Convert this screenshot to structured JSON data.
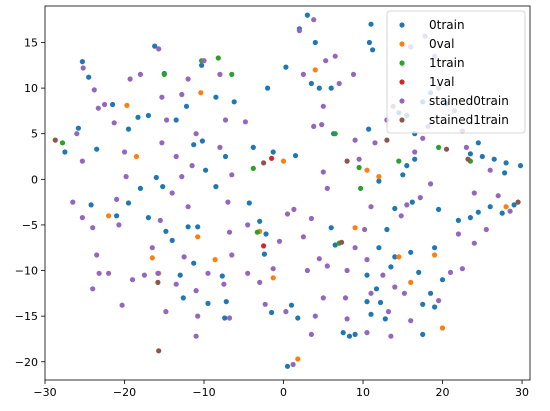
{
  "chart_data": {
    "type": "scatter",
    "title": "",
    "xlabel": "",
    "ylabel": "",
    "xlim": [
      -30,
      31
    ],
    "ylim": [
      -22,
      19
    ],
    "xticks": [
      -30,
      -20,
      -10,
      0,
      10,
      20,
      30
    ],
    "yticks": [
      -20,
      -15,
      -10,
      -5,
      0,
      5,
      10,
      15
    ],
    "grid": false,
    "legend_position": "top-right",
    "series": [
      {
        "name": "0train",
        "color": "#1f77b4",
        "points": [
          [
            -25.3,
            12.9
          ],
          [
            -24.5,
            11.2
          ],
          [
            -23.5,
            3.3
          ],
          [
            -25.8,
            5.6
          ],
          [
            -27.5,
            3.0
          ],
          [
            -24.2,
            -2.8
          ],
          [
            -21.0,
            -4.0
          ],
          [
            -21.5,
            8.2
          ],
          [
            -19.5,
            5.5
          ],
          [
            -18.3,
            6.8
          ],
          [
            -17.0,
            7.0
          ],
          [
            -18.0,
            -1.0
          ],
          [
            -19.5,
            -2.6
          ],
          [
            -17.0,
            -4.2
          ],
          [
            -16.0,
            0.2
          ],
          [
            -15.2,
            -0.8
          ],
          [
            -14.8,
            -5.7
          ],
          [
            -14.0,
            -6.7
          ],
          [
            -16.2,
            14.6
          ],
          [
            -15.0,
            11.6
          ],
          [
            -13.5,
            6.5
          ],
          [
            -12.2,
            8.0
          ],
          [
            -11.3,
            3.8
          ],
          [
            -10.2,
            4.2
          ],
          [
            -9.8,
            1.0
          ],
          [
            -10.3,
            12.5
          ],
          [
            -8.5,
            9.0
          ],
          [
            -6.2,
            8.5
          ],
          [
            -7.3,
            2.5
          ],
          [
            -8.5,
            -0.8
          ],
          [
            -12.0,
            -5.2
          ],
          [
            -10.8,
            -5.2
          ],
          [
            -11.3,
            -9.2
          ],
          [
            -13.0,
            -10.5
          ],
          [
            -12.6,
            -13.0
          ],
          [
            -9.5,
            -13.6
          ],
          [
            -7.7,
            -10.6
          ],
          [
            -7.2,
            -13.4
          ],
          [
            -7.4,
            -15.2
          ],
          [
            -4.3,
            -2.6
          ],
          [
            -3.0,
            -4.6
          ],
          [
            -2.2,
            -6.0
          ],
          [
            -2.4,
            -8.2
          ],
          [
            -1.5,
            -14.6
          ],
          [
            1.0,
            -13.8
          ],
          [
            1.8,
            -15.2
          ],
          [
            0.5,
            -20.5
          ],
          [
            -3.8,
            3.5
          ],
          [
            -1.3,
            3.0
          ],
          [
            1.5,
            2.6
          ],
          [
            0.3,
            12.3
          ],
          [
            -2.0,
            10.0
          ],
          [
            2.0,
            16.5
          ],
          [
            3.0,
            18.0
          ],
          [
            4.0,
            15.0
          ],
          [
            3.5,
            10.5
          ],
          [
            4.5,
            10.0
          ],
          [
            6.0,
            10.0
          ],
          [
            6.3,
            5.0
          ],
          [
            6.0,
            -5.3
          ],
          [
            6.5,
            -7.2
          ],
          [
            7.5,
            -16.8
          ],
          [
            8.3,
            -17.2
          ],
          [
            9.0,
            -17.0
          ],
          [
            10.5,
            -10.5
          ],
          [
            10.5,
            -13.4
          ],
          [
            11.0,
            -14.8
          ],
          [
            11.7,
            -12.0
          ],
          [
            12.2,
            -13.5
          ],
          [
            12.8,
            -15.3
          ],
          [
            12.0,
            -7.5
          ],
          [
            13.5,
            -9.6
          ],
          [
            14.0,
            -8.5
          ],
          [
            12.0,
            -0.2
          ],
          [
            14.0,
            -3.2
          ],
          [
            15.0,
            0.5
          ],
          [
            16.2,
            -2.5
          ],
          [
            16.0,
            -8.0
          ],
          [
            17.0,
            -10.2
          ],
          [
            17.5,
            -13.7
          ],
          [
            18.5,
            -12.5
          ],
          [
            19.0,
            -14.0
          ],
          [
            11.0,
            17.0
          ],
          [
            10.8,
            15.0
          ],
          [
            11.2,
            14.2
          ],
          [
            10.7,
            5.5
          ],
          [
            13.0,
            -5.5
          ],
          [
            15.5,
            1.5
          ],
          [
            16.5,
            2.2
          ],
          [
            19.5,
            -3.3
          ],
          [
            19.0,
            -7.5
          ],
          [
            20.0,
            -11.0
          ],
          [
            22.0,
            -4.5
          ],
          [
            23.5,
            -4.2
          ],
          [
            24.5,
            -3.6
          ],
          [
            26.0,
            -3.0
          ],
          [
            27.5,
            -3.7
          ],
          [
            29.0,
            -2.8
          ],
          [
            29.8,
            1.5
          ],
          [
            24.5,
            4.0
          ],
          [
            25.0,
            2.5
          ],
          [
            26.5,
            2.2
          ],
          [
            28.0,
            1.8
          ],
          [
            27.8,
            0.7
          ],
          [
            23.5,
            2.8
          ],
          [
            20.5,
            8.3
          ],
          [
            18.5,
            9.5
          ],
          [
            17.5,
            8.5
          ],
          [
            16.5,
            5.0
          ],
          [
            15.5,
            7.0
          ],
          [
            14.5,
            7.3
          ],
          [
            17.5,
            -17.0
          ]
        ]
      },
      {
        "name": "0val",
        "color": "#ff7f0e",
        "points": [
          [
            -19.7,
            8.1
          ],
          [
            -18.5,
            2.5
          ],
          [
            -22.0,
            -4.0
          ],
          [
            -16.5,
            -8.6
          ],
          [
            -15.7,
            -10.3
          ],
          [
            -10.8,
            -6.3
          ],
          [
            -10.4,
            9.5
          ],
          [
            -8.6,
            -8.8
          ],
          [
            -3.0,
            -5.7
          ],
          [
            -1.3,
            -10.8
          ],
          [
            0.0,
            2.0
          ],
          [
            1.8,
            -19.7
          ],
          [
            4.0,
            12.0
          ],
          [
            9.0,
            -5.3
          ],
          [
            10.5,
            1.0
          ],
          [
            12.0,
            0.3
          ],
          [
            14.5,
            -8.5
          ],
          [
            16.0,
            -11.3
          ],
          [
            19.0,
            -8.3
          ],
          [
            20.0,
            -16.3
          ],
          [
            28.0,
            -3.0
          ]
        ]
      },
      {
        "name": "1train",
        "color": "#2ca02c",
        "points": [
          [
            -27.8,
            4.0
          ],
          [
            -15.0,
            11.5
          ],
          [
            -10.3,
            13.0
          ],
          [
            -8.2,
            13.3
          ],
          [
            -6.5,
            11.5
          ],
          [
            -3.8,
            1.2
          ],
          [
            -3.3,
            -5.8
          ],
          [
            6.5,
            5.0
          ],
          [
            7.0,
            -7.0
          ],
          [
            9.5,
            1.3
          ],
          [
            9.7,
            -1.0
          ],
          [
            14.5,
            2.0
          ],
          [
            19.5,
            3.5
          ],
          [
            23.5,
            2.0
          ]
        ]
      },
      {
        "name": "1val",
        "color": "#d62728",
        "points": [
          [
            -2.5,
            -7.3
          ],
          [
            -1.5,
            2.3
          ]
        ]
      },
      {
        "name": "stained0train",
        "color": "#9467bd",
        "points": [
          [
            -25.2,
            12.2
          ],
          [
            -23.8,
            9.8
          ],
          [
            -23.3,
            7.8
          ],
          [
            -26.0,
            5.0
          ],
          [
            -25.3,
            2.0
          ],
          [
            -26.5,
            -2.5
          ],
          [
            -25.3,
            -4.2
          ],
          [
            -24.0,
            -5.3
          ],
          [
            -23.5,
            -8.3
          ],
          [
            -23.2,
            -10.3
          ],
          [
            -24.0,
            -12.0
          ],
          [
            -22.0,
            -10.3
          ],
          [
            -20.3,
            -13.8
          ],
          [
            -19.0,
            -11.0
          ],
          [
            -20.7,
            -5.0
          ],
          [
            -21.0,
            -2.2
          ],
          [
            -19.8,
            0.3
          ],
          [
            -20.0,
            3.0
          ],
          [
            -21.3,
            6.2
          ],
          [
            -22.5,
            8.2
          ],
          [
            -19.3,
            11.0
          ],
          [
            -18.0,
            11.5
          ],
          [
            -15.7,
            14.3
          ],
          [
            -15.3,
            9.0
          ],
          [
            -14.7,
            6.5
          ],
          [
            -15.3,
            4.0
          ],
          [
            -13.5,
            2.5
          ],
          [
            -12.8,
            0.3
          ],
          [
            -14.0,
            -1.5
          ],
          [
            -15.5,
            -4.5
          ],
          [
            -16.5,
            -7.5
          ],
          [
            -15.8,
            -10.3
          ],
          [
            -14.8,
            -14.5
          ],
          [
            -13.5,
            -11.5
          ],
          [
            -12.5,
            -8.5
          ],
          [
            -12.0,
            -3.0
          ],
          [
            -11.5,
            1.5
          ],
          [
            -11.0,
            5.0
          ],
          [
            -12.8,
            9.3
          ],
          [
            -12.0,
            11.0
          ],
          [
            -10.0,
            13.0
          ],
          [
            -8.0,
            11.5
          ],
          [
            -7.3,
            6.5
          ],
          [
            -8.0,
            3.5
          ],
          [
            -6.5,
            0.5
          ],
          [
            -7.0,
            -2.5
          ],
          [
            -6.8,
            -5.8
          ],
          [
            -6.5,
            -8.3
          ],
          [
            -9.5,
            -10.3
          ],
          [
            -11.0,
            -12.2
          ],
          [
            -10.8,
            -15.0
          ],
          [
            -11.0,
            -17.2
          ],
          [
            -7.5,
            -11.5
          ],
          [
            -4.5,
            -5.0
          ],
          [
            -4.5,
            -10.3
          ],
          [
            -3.0,
            -11.3
          ],
          [
            -1.3,
            -9.8
          ],
          [
            -0.5,
            -6.8
          ],
          [
            0.5,
            -3.8
          ],
          [
            1.3,
            -3.3
          ],
          [
            2.5,
            -6.3
          ],
          [
            3.5,
            -4.3
          ],
          [
            3.0,
            -10.0
          ],
          [
            4.5,
            -8.7
          ],
          [
            5.0,
            -13.0
          ],
          [
            4.0,
            -15.0
          ],
          [
            3.5,
            -17.0
          ],
          [
            1.2,
            -20.3
          ],
          [
            5.5,
            -1.0
          ],
          [
            5.0,
            0.8
          ],
          [
            3.8,
            5.8
          ],
          [
            4.8,
            6.0
          ],
          [
            2.5,
            11.5
          ],
          [
            2.0,
            16.3
          ],
          [
            3.8,
            17.5
          ],
          [
            5.3,
            13.0
          ],
          [
            5.0,
            8.0
          ],
          [
            7.0,
            10.5
          ],
          [
            8.8,
            11.5
          ],
          [
            9.0,
            4.3
          ],
          [
            9.5,
            2.2
          ],
          [
            11.5,
            4.0
          ],
          [
            11.0,
            -3.0
          ],
          [
            10.2,
            -5.5
          ],
          [
            9.0,
            -7.5
          ],
          [
            8.0,
            -10.0
          ],
          [
            7.8,
            -13.0
          ],
          [
            8.0,
            -15.3
          ],
          [
            10.5,
            -16.8
          ],
          [
            11.0,
            -12.5
          ],
          [
            12.5,
            -10.5
          ],
          [
            13.2,
            -14.5
          ],
          [
            14.0,
            -11.8
          ],
          [
            15.2,
            -12.5
          ],
          [
            16.0,
            -15.5
          ],
          [
            14.8,
            -4.0
          ],
          [
            15.5,
            -2.8
          ],
          [
            17.2,
            -2.0
          ],
          [
            18.5,
            -0.5
          ],
          [
            16.5,
            3.0
          ],
          [
            17.5,
            4.5
          ],
          [
            18.2,
            5.8
          ],
          [
            13.0,
            6.5
          ],
          [
            13.8,
            8.0
          ],
          [
            15.0,
            12.5
          ],
          [
            16.0,
            14.5
          ],
          [
            17.8,
            15.7
          ],
          [
            19.0,
            13.5
          ],
          [
            19.5,
            10.0
          ],
          [
            21.5,
            7.5
          ],
          [
            22.5,
            5.3
          ],
          [
            23.0,
            3.5
          ],
          [
            24.0,
            -1.5
          ],
          [
            24.0,
            -7.0
          ],
          [
            22.5,
            -9.8
          ],
          [
            21.0,
            -10.2
          ],
          [
            19.5,
            -13.3
          ],
          [
            22.0,
            -6.0
          ],
          [
            25.5,
            -5.5
          ],
          [
            27.0,
            -1.8
          ],
          [
            28.5,
            -3.5
          ],
          [
            26.0,
            1.0
          ],
          [
            10.5,
            -8.8
          ],
          [
            5.5,
            -9.5
          ],
          [
            -4.8,
            6.3
          ],
          [
            -2.3,
            -13.7
          ],
          [
            -17.5,
            -10.5
          ],
          [
            0.3,
            -14.5
          ],
          [
            13.5,
            -17.2
          ],
          [
            -6.8,
            -15.2
          ],
          [
            6.5,
            13.5
          ]
        ]
      },
      {
        "name": "stained1train",
        "color": "#8c564b",
        "points": [
          [
            -28.7,
            4.3
          ],
          [
            -15.8,
            -11.3
          ],
          [
            -15.7,
            -18.8
          ],
          [
            -2.5,
            1.8
          ],
          [
            7.3,
            -6.9
          ],
          [
            8.0,
            2.0
          ],
          [
            13.0,
            4.3
          ],
          [
            20.5,
            3.3
          ],
          [
            23.2,
            2.2
          ],
          [
            29.5,
            -2.5
          ]
        ]
      }
    ]
  }
}
